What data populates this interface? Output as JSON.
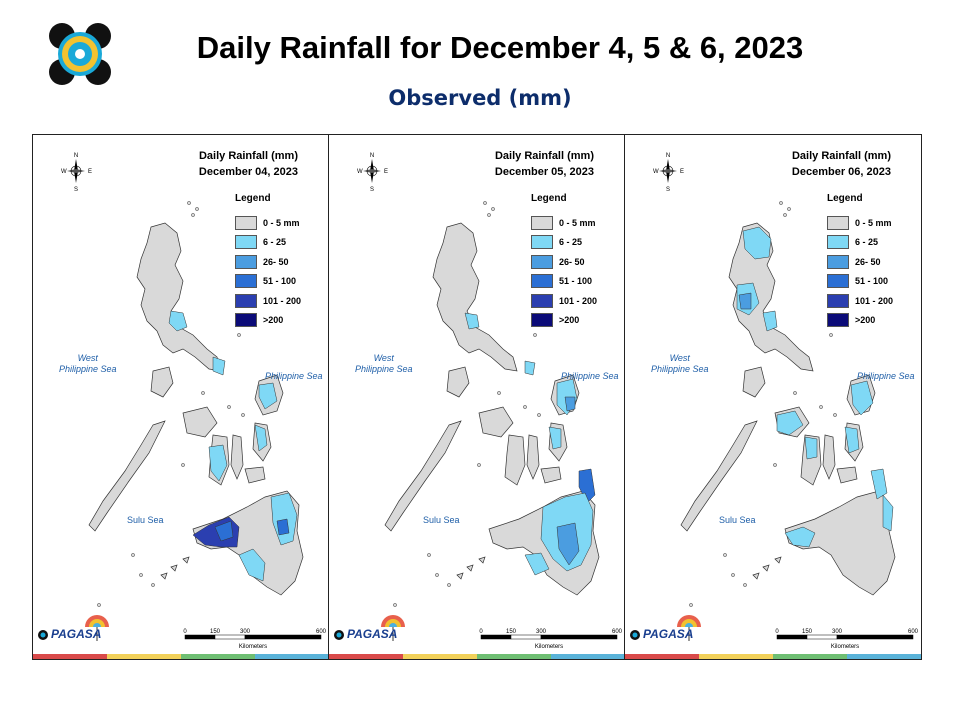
{
  "header": {
    "logo_icon": "dost-seal-icon",
    "title": "Daily Rainfall for December 4, 5 & 6, 2023",
    "subtitle": "Observed (mm)"
  },
  "panels": [
    {
      "title_line1": "Daily Rainfall (mm)",
      "title_line2": "December 04, 2023",
      "legend_title": "Legend",
      "legend": [
        {
          "label": "0 - 5 mm",
          "color": "#d9d9d9"
        },
        {
          "label": "6 - 25",
          "color": "#7fd8f5"
        },
        {
          "label": "26- 50",
          "color": "#4b9de0"
        },
        {
          "label": "51 - 100",
          "color": "#2b6fd4"
        },
        {
          "label": "101 - 200",
          "color": "#2b3fb0"
        },
        {
          "label": ">200",
          "color": "#0b0b78"
        }
      ],
      "west_sea": "West\nPhilippine Sea",
      "east_sea": "Philippine Sea",
      "south_sea": "Sulu Sea",
      "scale_ticks": [
        "0",
        "150",
        "300",
        "600"
      ],
      "scale_unit": "Kilometers",
      "brand": "PAGASA"
    },
    {
      "title_line1": "Daily Rainfall (mm)",
      "title_line2": "December 05, 2023",
      "legend_title": "Legend",
      "legend": [
        {
          "label": "0 - 5 mm",
          "color": "#d9d9d9"
        },
        {
          "label": "6 - 25",
          "color": "#7fd8f5"
        },
        {
          "label": "26- 50",
          "color": "#4b9de0"
        },
        {
          "label": "51 - 100",
          "color": "#2b6fd4"
        },
        {
          "label": "101 - 200",
          "color": "#2b3fb0"
        },
        {
          "label": ">200",
          "color": "#0b0b78"
        }
      ],
      "west_sea": "West\nPhilippine Sea",
      "east_sea": "Philippine Sea",
      "south_sea": "Sulu Sea",
      "scale_ticks": [
        "0",
        "150",
        "300",
        "600"
      ],
      "scale_unit": "Kilometers",
      "brand": "PAGASA"
    },
    {
      "title_line1": "Daily Rainfall (mm)",
      "title_line2": "December 06, 2023",
      "legend_title": "Legend",
      "legend": [
        {
          "label": "0 - 5 mm",
          "color": "#d9d9d9"
        },
        {
          "label": "6 - 25",
          "color": "#7fd8f5"
        },
        {
          "label": "26- 50",
          "color": "#4b9de0"
        },
        {
          "label": "51 - 100",
          "color": "#2b6fd4"
        },
        {
          "label": "101 - 200",
          "color": "#2b3fb0"
        },
        {
          "label": ">200",
          "color": "#0b0b78"
        }
      ],
      "west_sea": "West\nPhilippine Sea",
      "east_sea": "Philippine Sea",
      "south_sea": "Sulu Sea",
      "scale_ticks": [
        "0",
        "150",
        "300",
        "600"
      ],
      "scale_unit": "Kilometers",
      "brand": "PAGASA"
    }
  ],
  "brand_colors": [
    "#d94a4a",
    "#f2d15a",
    "#6fbf73",
    "#5ab3d9"
  ]
}
